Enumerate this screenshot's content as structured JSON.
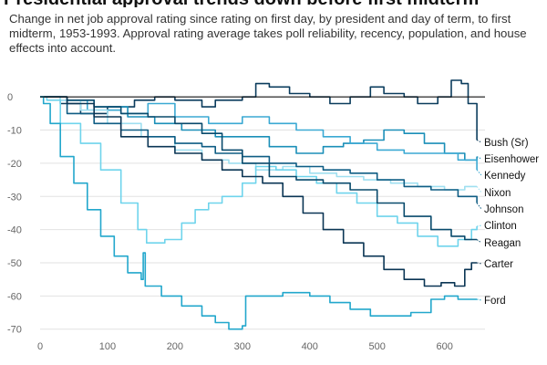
{
  "header": {
    "title": "Presidential approval trends down before first midterm",
    "subtitle": "Change in net job approval rating since rating on first day, by president and day of term, to first midterm, 1953-1993. Approval rating average takes poll reliability, recency, population, and house effects into account."
  },
  "chart_data": {
    "type": "line",
    "title": "Presidential approval trends down before first midterm",
    "subtitle": "Change in net job approval rating since rating on first day, by president and day of term, to first midterm, 1953-1993. Approval rating average takes poll reliability, recency, population, and house effects into account.",
    "xlabel": "",
    "ylabel": "",
    "xlim": [
      0,
      660
    ],
    "ylim": [
      -72,
      5
    ],
    "x_ticks": [
      0,
      100,
      200,
      300,
      400,
      500,
      600
    ],
    "y_ticks": [
      0,
      -10,
      -20,
      -30,
      -40,
      -50,
      -60,
      -70
    ],
    "grid": "horizontal",
    "legend": "direct labels at line ends (right)",
    "series": [
      {
        "name": "Bush (Sr)",
        "color": "#0b3c5d",
        "points": [
          [
            0,
            0
          ],
          [
            30,
            -2
          ],
          [
            60,
            -5
          ],
          [
            100,
            -3
          ],
          [
            140,
            -1
          ],
          [
            170,
            0
          ],
          [
            200,
            -1
          ],
          [
            240,
            -3
          ],
          [
            260,
            -1
          ],
          [
            300,
            0
          ],
          [
            320,
            4
          ],
          [
            340,
            3
          ],
          [
            370,
            1
          ],
          [
            400,
            0
          ],
          [
            430,
            -2
          ],
          [
            460,
            0
          ],
          [
            490,
            3
          ],
          [
            510,
            1
          ],
          [
            540,
            0
          ],
          [
            560,
            -2
          ],
          [
            590,
            0
          ],
          [
            610,
            5
          ],
          [
            625,
            4
          ],
          [
            635,
            -2
          ],
          [
            648,
            -13
          ]
        ]
      },
      {
        "name": "Eisenhower",
        "color": "#1b8fb8",
        "points": [
          [
            0,
            0
          ],
          [
            40,
            -1
          ],
          [
            80,
            -3
          ],
          [
            130,
            -6
          ],
          [
            170,
            -8
          ],
          [
            210,
            -10
          ],
          [
            260,
            -12
          ],
          [
            300,
            -12
          ],
          [
            340,
            -15
          ],
          [
            380,
            -17
          ],
          [
            420,
            -15
          ],
          [
            450,
            -14
          ],
          [
            480,
            -13
          ],
          [
            510,
            -10
          ],
          [
            540,
            -11
          ],
          [
            570,
            -14
          ],
          [
            600,
            -17
          ],
          [
            630,
            -19
          ],
          [
            648,
            -18
          ]
        ]
      },
      {
        "name": "Kennedy",
        "color": "#3ba9d3",
        "points": [
          [
            0,
            0
          ],
          [
            30,
            -1
          ],
          [
            70,
            -4
          ],
          [
            120,
            -5
          ],
          [
            160,
            -2
          ],
          [
            200,
            -6
          ],
          [
            250,
            -8
          ],
          [
            300,
            -6
          ],
          [
            340,
            -8
          ],
          [
            380,
            -10
          ],
          [
            420,
            -12
          ],
          [
            460,
            -14
          ],
          [
            500,
            -16
          ],
          [
            540,
            -17
          ],
          [
            580,
            -17
          ],
          [
            620,
            -19
          ],
          [
            648,
            -22
          ]
        ]
      },
      {
        "name": "Nixon",
        "color": "#9fdff0",
        "points": [
          [
            0,
            0
          ],
          [
            30,
            -1
          ],
          [
            60,
            -4
          ],
          [
            100,
            -8
          ],
          [
            150,
            -12
          ],
          [
            200,
            -16
          ],
          [
            240,
            -19
          ],
          [
            280,
            -20
          ],
          [
            320,
            -22
          ],
          [
            360,
            -21
          ],
          [
            400,
            -23
          ],
          [
            440,
            -24
          ],
          [
            480,
            -25
          ],
          [
            520,
            -26
          ],
          [
            560,
            -27
          ],
          [
            600,
            -28
          ],
          [
            630,
            -27
          ],
          [
            648,
            -27
          ]
        ]
      },
      {
        "name": "Johnson",
        "color": "#0f5d84",
        "points": [
          [
            0,
            0
          ],
          [
            40,
            -5
          ],
          [
            80,
            -8
          ],
          [
            120,
            -10
          ],
          [
            160,
            -12
          ],
          [
            200,
            -14
          ],
          [
            240,
            -15
          ],
          [
            260,
            -17
          ],
          [
            300,
            -18
          ],
          [
            340,
            -20
          ],
          [
            380,
            -21
          ],
          [
            420,
            -22
          ],
          [
            460,
            -23
          ],
          [
            500,
            -25
          ],
          [
            540,
            -27
          ],
          [
            580,
            -28
          ],
          [
            620,
            -30
          ],
          [
            648,
            -32
          ]
        ]
      },
      {
        "name": "Clinton",
        "color": "#6fd4ec",
        "points": [
          [
            0,
            0
          ],
          [
            10,
            -1
          ],
          [
            30,
            -8
          ],
          [
            60,
            -14
          ],
          [
            90,
            -22
          ],
          [
            120,
            -32
          ],
          [
            145,
            -40
          ],
          [
            158,
            -44
          ],
          [
            185,
            -43
          ],
          [
            210,
            -38
          ],
          [
            230,
            -34
          ],
          [
            250,
            -32
          ],
          [
            270,
            -30
          ],
          [
            300,
            -26
          ],
          [
            320,
            -21
          ],
          [
            350,
            -22
          ],
          [
            380,
            -24
          ],
          [
            410,
            -26
          ],
          [
            440,
            -29
          ],
          [
            470,
            -32
          ],
          [
            500,
            -36
          ],
          [
            530,
            -38
          ],
          [
            560,
            -42
          ],
          [
            590,
            -45
          ],
          [
            620,
            -43
          ],
          [
            640,
            -40
          ],
          [
            648,
            -39
          ]
        ]
      },
      {
        "name": "Reagan",
        "color": "#084a6c",
        "points": [
          [
            0,
            0
          ],
          [
            40,
            -1
          ],
          [
            80,
            -3
          ],
          [
            120,
            -5
          ],
          [
            160,
            -6
          ],
          [
            200,
            -8
          ],
          [
            240,
            -11
          ],
          [
            270,
            -16
          ],
          [
            300,
            -20
          ],
          [
            340,
            -24
          ],
          [
            380,
            -25
          ],
          [
            420,
            -26
          ],
          [
            460,
            -28
          ],
          [
            500,
            -32
          ],
          [
            540,
            -36
          ],
          [
            580,
            -40
          ],
          [
            610,
            -42
          ],
          [
            630,
            -43
          ],
          [
            648,
            -43
          ]
        ]
      },
      {
        "name": "Carter",
        "color": "#0a3554",
        "points": [
          [
            0,
            0
          ],
          [
            40,
            -2
          ],
          [
            80,
            -6
          ],
          [
            120,
            -12
          ],
          [
            160,
            -15
          ],
          [
            200,
            -17
          ],
          [
            240,
            -19
          ],
          [
            270,
            -22
          ],
          [
            300,
            -24
          ],
          [
            330,
            -26
          ],
          [
            360,
            -30
          ],
          [
            390,
            -35
          ],
          [
            420,
            -40
          ],
          [
            450,
            -44
          ],
          [
            480,
            -48
          ],
          [
            510,
            -52
          ],
          [
            540,
            -55
          ],
          [
            570,
            -57
          ],
          [
            595,
            -56
          ],
          [
            615,
            -57
          ],
          [
            630,
            -52
          ],
          [
            640,
            -50
          ],
          [
            648,
            -50
          ]
        ]
      },
      {
        "name": "Ford",
        "color": "#22a7cc",
        "points": [
          [
            0,
            0
          ],
          [
            5,
            -2
          ],
          [
            15,
            -8
          ],
          [
            30,
            -18
          ],
          [
            50,
            -26
          ],
          [
            70,
            -34
          ],
          [
            90,
            -42
          ],
          [
            110,
            -48
          ],
          [
            130,
            -53
          ],
          [
            150,
            -55
          ],
          [
            153,
            -47
          ],
          [
            156,
            -57
          ],
          [
            180,
            -60
          ],
          [
            210,
            -63
          ],
          [
            240,
            -66
          ],
          [
            260,
            -68
          ],
          [
            280,
            -70
          ],
          [
            300,
            -69
          ],
          [
            305,
            -60
          ],
          [
            330,
            -60
          ],
          [
            360,
            -59
          ],
          [
            400,
            -60
          ],
          [
            430,
            -62
          ],
          [
            460,
            -64
          ],
          [
            490,
            -66
          ],
          [
            520,
            -66
          ],
          [
            550,
            -65
          ],
          [
            580,
            -61
          ],
          [
            600,
            -60
          ],
          [
            620,
            -61
          ],
          [
            648,
            -61
          ]
        ]
      }
    ],
    "end_labels": [
      {
        "series": "Bush (Sr)",
        "text": "Bush (Sr)"
      },
      {
        "series": "Eisenhower",
        "text": "Eisenhower"
      },
      {
        "series": "Kennedy",
        "text": "Kennedy"
      },
      {
        "series": "Nixon",
        "text": "Nixon"
      },
      {
        "series": "Johnson",
        "text": "Johnson"
      },
      {
        "series": "Clinton",
        "text": "Clinton"
      },
      {
        "series": "Reagan",
        "text": "Reagan"
      },
      {
        "series": "Carter",
        "text": "Carter"
      },
      {
        "series": "Ford",
        "text": "Ford"
      }
    ]
  }
}
